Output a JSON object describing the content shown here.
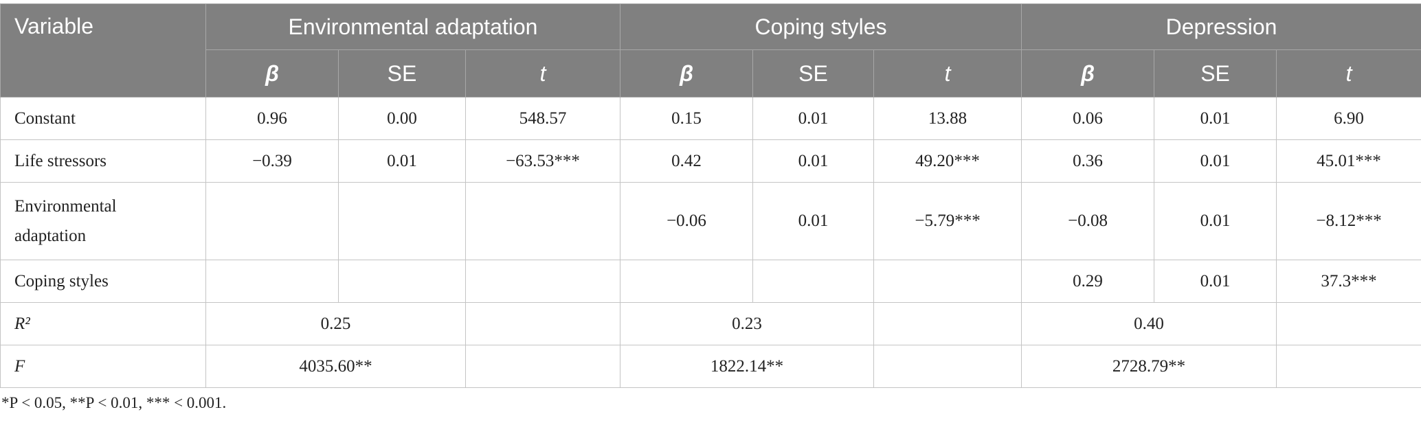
{
  "table": {
    "header": {
      "corner": "Variable",
      "groups": [
        "Environmental adaptation",
        "Coping styles",
        "Depression"
      ],
      "subheaders": [
        "β",
        "SE",
        "t"
      ]
    },
    "rows": [
      {
        "label": "Constant",
        "cells": [
          "0.96",
          "0.00",
          "548.57",
          "0.15",
          "0.01",
          "13.88",
          "0.06",
          "0.01",
          "6.90"
        ]
      },
      {
        "label": "Life stressors",
        "cells": [
          "−0.39",
          "0.01",
          "−63.53***",
          "0.42",
          "0.01",
          "49.20***",
          "0.36",
          "0.01",
          "45.01***"
        ]
      },
      {
        "label": "Environmental adaptation",
        "cells": [
          null,
          null,
          null,
          "−0.06",
          "0.01",
          "−5.79***",
          "−0.08",
          "0.01",
          "−8.12***"
        ]
      },
      {
        "label": "Coping styles",
        "cells": [
          null,
          null,
          null,
          null,
          null,
          null,
          "0.29",
          "0.01",
          "37.3***"
        ]
      }
    ],
    "summary_rows": [
      {
        "label": "R²",
        "values": [
          "0.25",
          "0.23",
          "0.40"
        ]
      },
      {
        "label": "F",
        "values": [
          "4035.60**",
          "1822.14**",
          "2728.79**"
        ]
      }
    ]
  },
  "footnote": "*P < 0.05, **P < 0.01, *** < 0.001."
}
